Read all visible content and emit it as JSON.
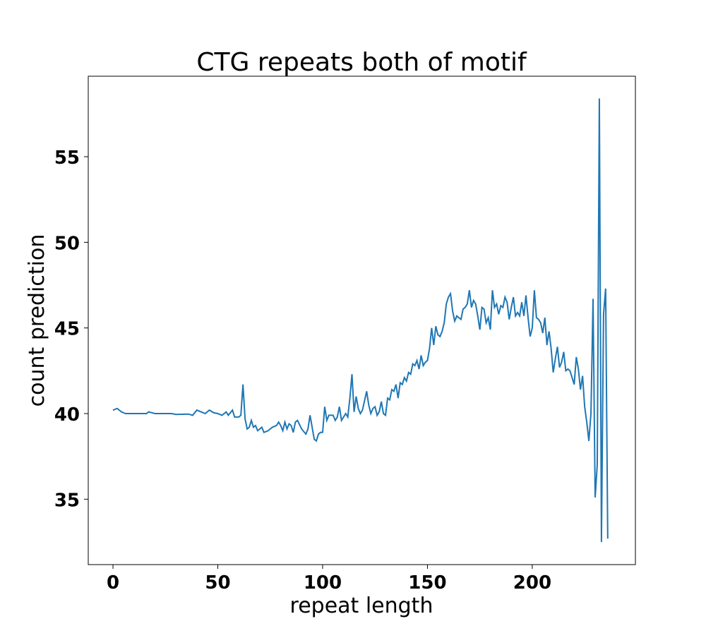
{
  "chart_data": {
    "type": "line",
    "title": "CTG repeats both of motif",
    "xlabel": "repeat length",
    "ylabel": "count prediction",
    "xlim": [
      -11.8,
      249.2
    ],
    "ylim": [
      31.18,
      59.7
    ],
    "xticks": [
      0,
      50,
      100,
      150,
      200
    ],
    "yticks": [
      35,
      40,
      45,
      50,
      55
    ],
    "x": [
      0,
      2,
      4,
      6,
      10,
      16,
      17,
      20,
      28,
      30,
      36,
      38,
      40,
      42,
      44,
      46,
      48,
      50,
      52,
      54,
      55,
      57,
      58,
      60,
      61,
      62,
      63,
      64,
      65,
      66,
      67,
      68,
      69,
      70,
      71,
      72,
      74,
      76,
      78,
      79,
      80,
      81,
      82,
      83,
      84,
      85,
      86,
      87,
      88,
      90,
      92,
      93,
      94,
      95,
      96,
      97,
      98,
      99,
      100,
      101,
      102,
      103,
      105,
      106,
      107,
      108,
      109,
      110,
      111,
      112,
      113,
      114,
      115,
      116,
      117,
      118,
      119,
      121,
      122,
      123,
      124,
      125,
      126,
      127,
      128,
      129,
      130,
      131,
      132,
      133,
      134,
      135,
      136,
      137,
      138,
      139,
      140,
      141,
      142,
      143,
      144,
      145,
      146,
      147,
      148,
      149,
      150,
      151,
      152,
      153,
      154,
      155,
      156,
      157,
      158,
      159,
      160,
      161,
      162,
      163,
      164,
      165,
      166,
      167,
      168,
      169,
      170,
      171,
      172,
      173,
      174,
      175,
      176,
      177,
      178,
      179,
      180,
      181,
      182,
      183,
      184,
      185,
      186,
      187,
      188,
      189,
      190,
      191,
      192,
      193,
      194,
      195,
      196,
      197,
      198,
      199,
      200,
      201,
      202,
      203,
      204,
      205,
      206,
      207,
      208,
      209,
      210,
      211,
      212,
      213,
      214,
      215,
      216,
      217,
      218,
      219,
      220,
      221,
      222,
      223,
      224,
      225,
      226,
      227,
      228,
      229,
      230,
      231,
      232,
      233,
      234,
      235,
      236
    ],
    "series": [
      {
        "name": "count prediction",
        "color": "#1f77b4",
        "values": [
          40.2,
          40.3,
          40.1,
          40.0,
          40.0,
          40.0,
          40.1,
          40.0,
          40.0,
          39.95,
          39.97,
          39.9,
          40.2,
          40.1,
          40.0,
          40.2,
          40.05,
          40.0,
          39.9,
          40.1,
          39.9,
          40.2,
          39.8,
          39.8,
          39.9,
          41.7,
          39.7,
          39.1,
          39.2,
          39.6,
          39.2,
          39.3,
          39.0,
          39.1,
          39.2,
          38.9,
          39.0,
          39.2,
          39.3,
          39.5,
          39.3,
          39.0,
          39.5,
          39.1,
          39.4,
          39.3,
          38.9,
          39.5,
          39.6,
          39.1,
          38.8,
          39.1,
          39.9,
          39.2,
          38.5,
          38.4,
          38.8,
          38.9,
          38.9,
          40.4,
          39.6,
          39.9,
          39.9,
          39.6,
          39.8,
          40.4,
          39.6,
          39.8,
          40.0,
          39.8,
          40.9,
          42.3,
          40.1,
          41.0,
          40.3,
          40.0,
          40.2,
          41.3,
          40.5,
          40.0,
          40.3,
          40.4,
          39.9,
          40.1,
          40.7,
          40.0,
          39.9,
          40.9,
          40.8,
          41.4,
          41.3,
          41.7,
          40.9,
          41.8,
          41.7,
          42.1,
          41.9,
          42.4,
          42.3,
          42.9,
          42.8,
          43.1,
          42.6,
          43.4,
          42.8,
          43.0,
          43.1,
          43.8,
          45.0,
          44.0,
          45.1,
          44.6,
          44.5,
          44.8,
          45.3,
          46.4,
          46.8,
          47.0,
          46.0,
          45.4,
          45.7,
          45.6,
          45.5,
          46.1,
          46.2,
          46.4,
          47.2,
          46.2,
          46.6,
          46.4,
          45.7,
          44.9,
          46.2,
          46.1,
          45.3,
          45.6,
          44.9,
          47.2,
          46.2,
          46.4,
          45.8,
          46.3,
          46.2,
          46.8,
          46.5,
          45.5,
          46.2,
          46.8,
          45.7,
          45.9,
          45.7,
          46.5,
          45.7,
          46.9,
          45.6,
          44.5,
          45.0,
          47.2,
          45.6,
          45.5,
          45.3,
          44.7,
          45.6,
          44.0,
          44.8,
          43.8,
          42.4,
          43.2,
          43.9,
          42.7,
          43.0,
          43.6,
          42.5,
          42.6,
          42.5,
          42.1,
          41.7,
          43.3,
          42.6,
          41.4,
          42.2,
          40.4,
          39.5,
          38.4,
          40.0,
          46.7,
          35.1,
          37.0,
          58.4,
          32.5,
          45.8,
          47.3,
          32.7
        ]
      }
    ]
  }
}
